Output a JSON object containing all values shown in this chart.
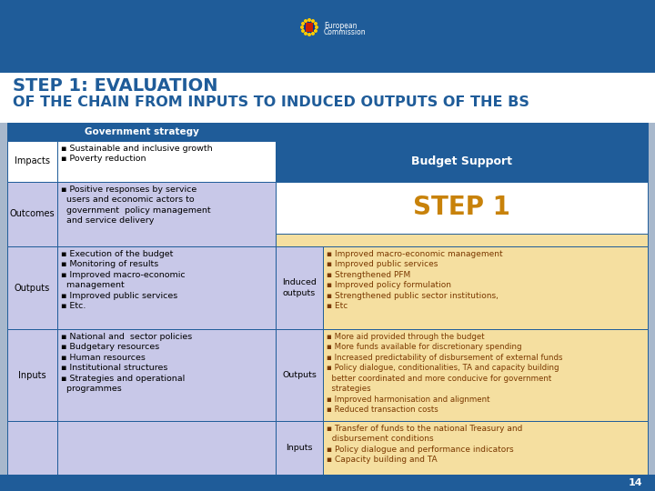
{
  "title_line1": "STEP 1: EVALUATION",
  "title_line2": "OF THE CHAIN FROM INPUTS TO INDUCED OUTPUTS OF THE BS",
  "header_bg": "#1F5C99",
  "title_text_color": "#1F5C99",
  "gov_strategy_header": "Government strategy",
  "budget_support_header": "Budget Support",
  "step1_text": "STEP 1",
  "step1_color": "#C8820A",
  "cell_bg_lavender": "#C8C8E8",
  "cell_bg_white": "#FFFFFF",
  "cell_bg_orange": "#F5DFA0",
  "border_color": "#1F5C99",
  "page_number": "14",
  "slide_bg": "#A8B8CC",
  "impacts_left": "▪ Sustainable and inclusive growth\n▪ Poverty reduction",
  "outcomes_left": "▪ Positive responses by service\n  users and economic actors to\n  government  policy management\n  and service delivery",
  "outputs_left": "▪ Execution of the budget\n▪ Monitoring of results\n▪ Improved macro-economic\n  management\n▪ Improved public services\n▪ Etc.",
  "inputs_left": "▪ National and  sector policies\n▪ Budgetary resources\n▪ Human resources\n▪ Institutional structures\n▪ Strategies and operational\n  programmes",
  "outputs_right": "▪ Improved macro-economic management\n▪ Improved public services\n▪ Strengthened PFM\n▪ Improved policy formulation\n▪ Strengthened public sector institutions,\n▪ Etc",
  "inputs_right": "▪ More aid provided through the budget\n▪ More funds available for discretionary spending\n▪ Increased predictability of disbursement of external funds\n▪ Policy dialogue, conditionalities, TA and capacity building\n  better coordinated and more conducive for government\n  strategies\n▪ Improved harmonisation and alignment\n▪ Reduced transaction costs",
  "last_right": "▪ Transfer of funds to the national Treasury and\n  disbursement conditions\n▪ Policy dialogue and performance indicators\n▪ Capacity building and TA"
}
